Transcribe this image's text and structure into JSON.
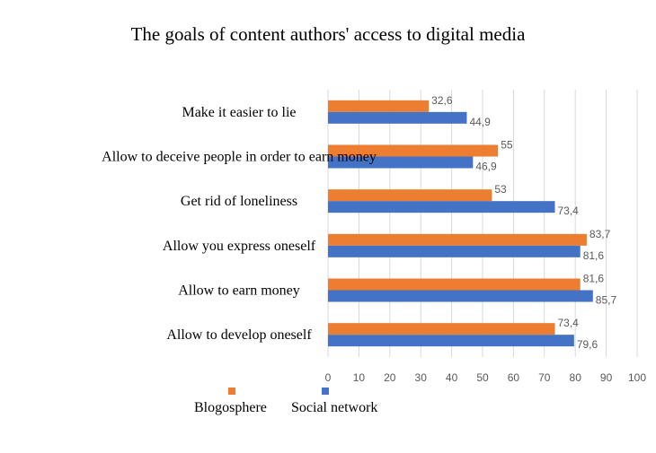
{
  "chart_data": {
    "type": "bar",
    "orientation": "horizontal",
    "title": "The goals of content authors' access to digital media",
    "categories": [
      "Make it easier to lie",
      "Allow to deceive people in order to earn money",
      "Get rid of loneliness",
      "Allow you express oneself",
      "Allow to earn money",
      "Allow to develop oneself"
    ],
    "series": [
      {
        "name": "Blogosphere",
        "color": "#ED7D31",
        "values": [
          32.6,
          55,
          53,
          83.7,
          81.6,
          73.4
        ],
        "labels": [
          "32,6",
          "55",
          "53",
          "83,7",
          "81,6",
          "73,4"
        ]
      },
      {
        "name": "Social network",
        "color": "#4472C4",
        "values": [
          44.9,
          46.9,
          73.4,
          81.6,
          85.7,
          79.6
        ],
        "labels": [
          "44,9",
          "46,9",
          "73,4",
          "81,6",
          "85,7",
          "79,6"
        ]
      }
    ],
    "xlim": [
      0,
      100
    ],
    "xticks": [
      "0",
      "10",
      "20",
      "30",
      "40",
      "50",
      "60",
      "70",
      "80",
      "90",
      "100"
    ],
    "grid": "vertical",
    "legend_position": "bottom"
  }
}
